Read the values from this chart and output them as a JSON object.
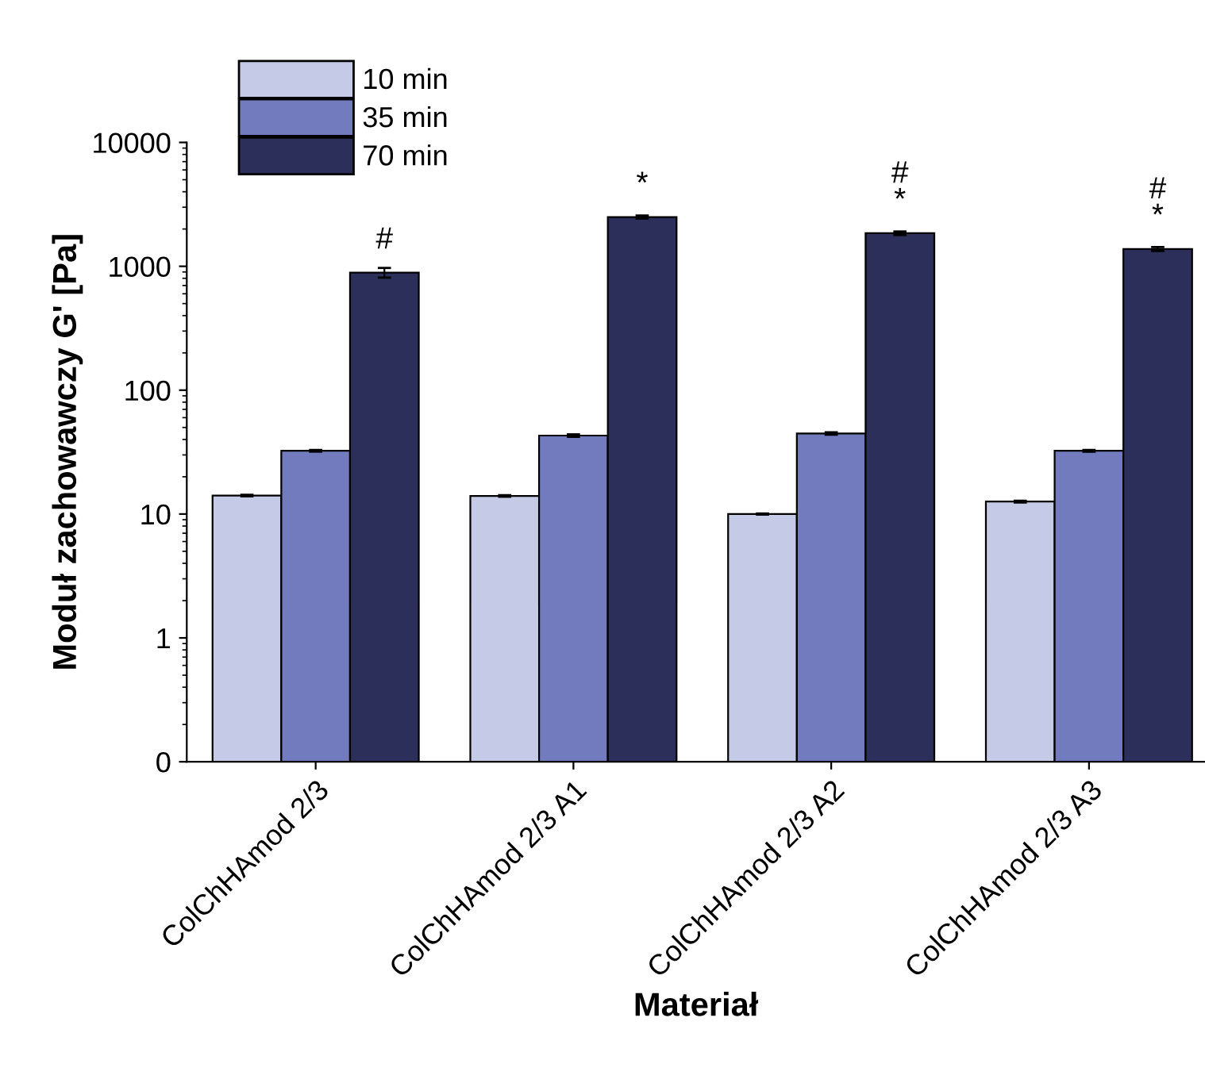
{
  "chart_data": {
    "type": "bar",
    "xlabel": "Materiał",
    "ylabel": "Moduł zachowawczy G' [Pa]",
    "categories": [
      "ColChHAmod 2/3",
      "ColChHAmod 2/3 A1",
      "ColChHAmod 2/3 A2",
      "ColChHAmod 2/3 A3"
    ],
    "series": [
      {
        "name": "10 min",
        "color": "#c5cae6",
        "values": [
          14.1,
          14,
          10,
          12.6
        ],
        "errors": [
          0.2,
          0.2,
          0.1,
          0.2
        ]
      },
      {
        "name": "35 min",
        "color": "#717bbd",
        "values": [
          32.4,
          43,
          44.7,
          32.4
        ],
        "errors": [
          0.5,
          1,
          1,
          0.5
        ]
      },
      {
        "name": "70 min",
        "color": "#2b2f5a",
        "values": [
          890,
          2500,
          1850,
          1380
        ],
        "errors": [
          80,
          70,
          60,
          50
        ]
      }
    ],
    "log": "y",
    "ylim": [
      0.1,
      10000
    ],
    "yticks": [
      {
        "value": 0.1,
        "label": "0"
      },
      1,
      10,
      100,
      1000,
      10000
    ],
    "legend": "top left",
    "annotations": [
      "#",
      "*",
      "#\n*",
      "#\n*"
    ]
  }
}
